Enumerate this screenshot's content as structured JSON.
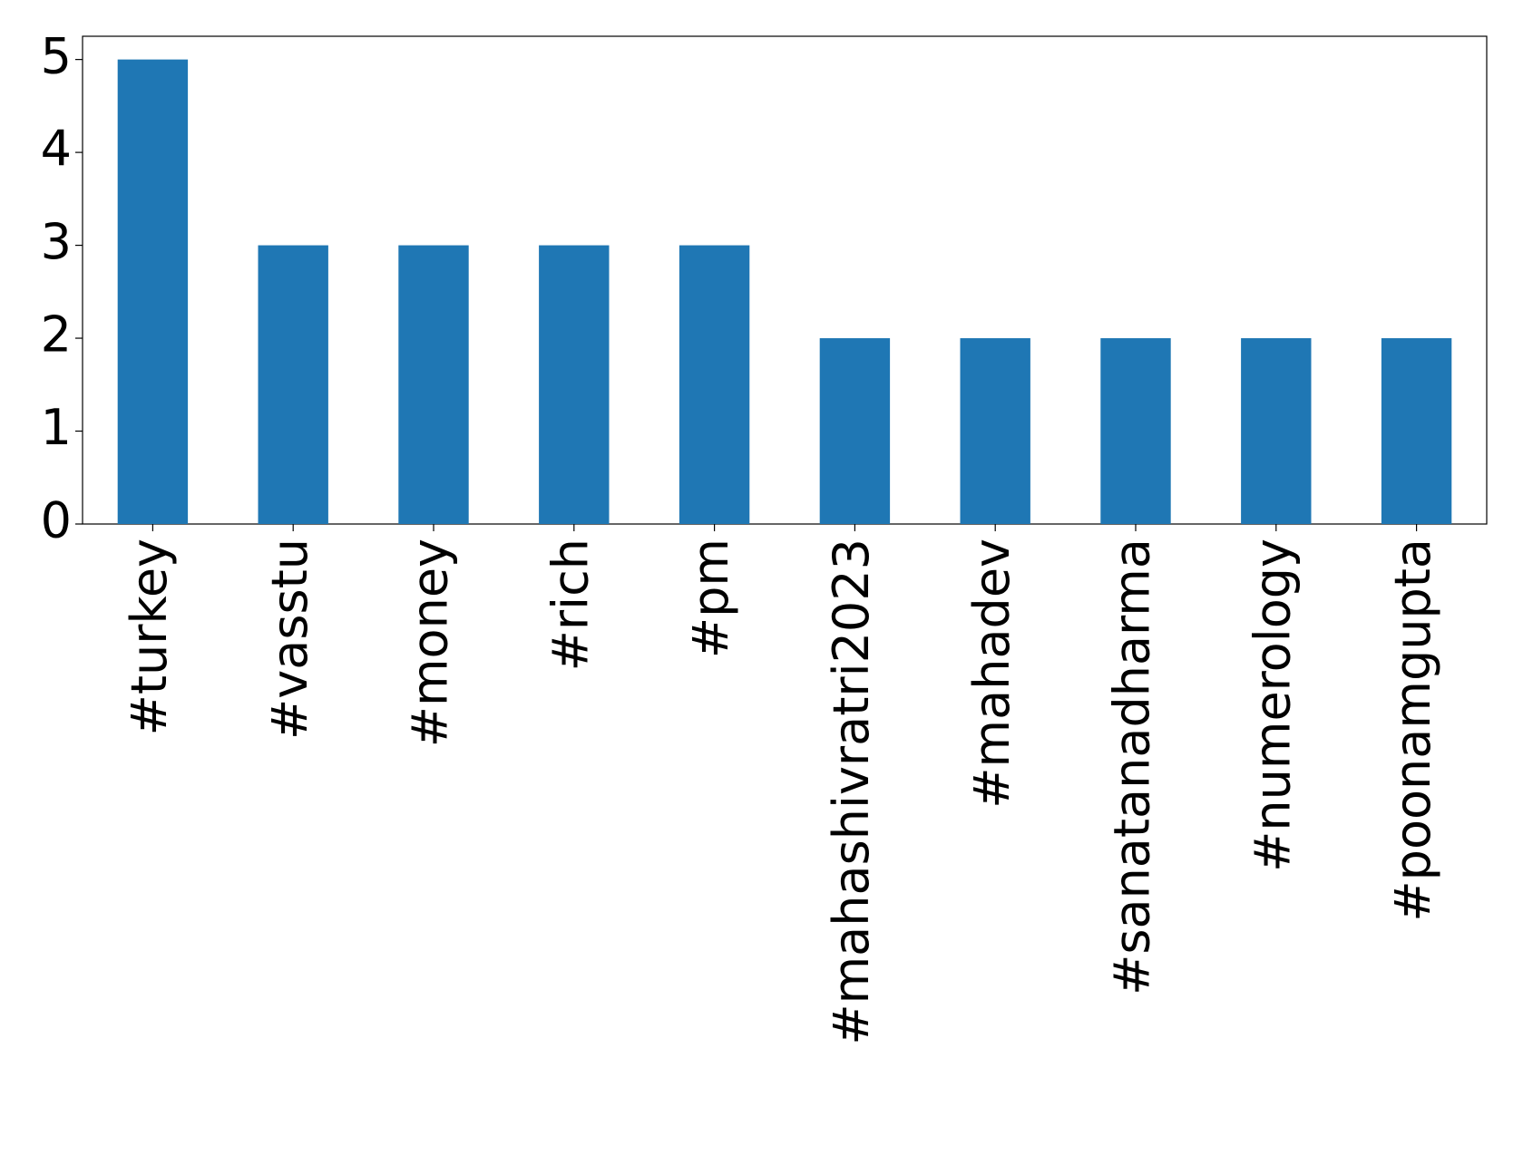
{
  "chart_data": {
    "type": "bar",
    "categories": [
      "#turkey",
      "#vasstu",
      "#money",
      "#rich",
      "#pm",
      "#mahashivratri2023",
      "#mahadev",
      "#sanatanadharma",
      "#numerology",
      "#poonamgupta"
    ],
    "values": [
      5,
      3,
      3,
      3,
      3,
      2,
      2,
      2,
      2,
      2
    ],
    "color": "#1f77b4",
    "ylim": [
      0,
      5.25
    ],
    "yticks": [
      0,
      1,
      2,
      3,
      4,
      5
    ],
    "grid": false
  }
}
